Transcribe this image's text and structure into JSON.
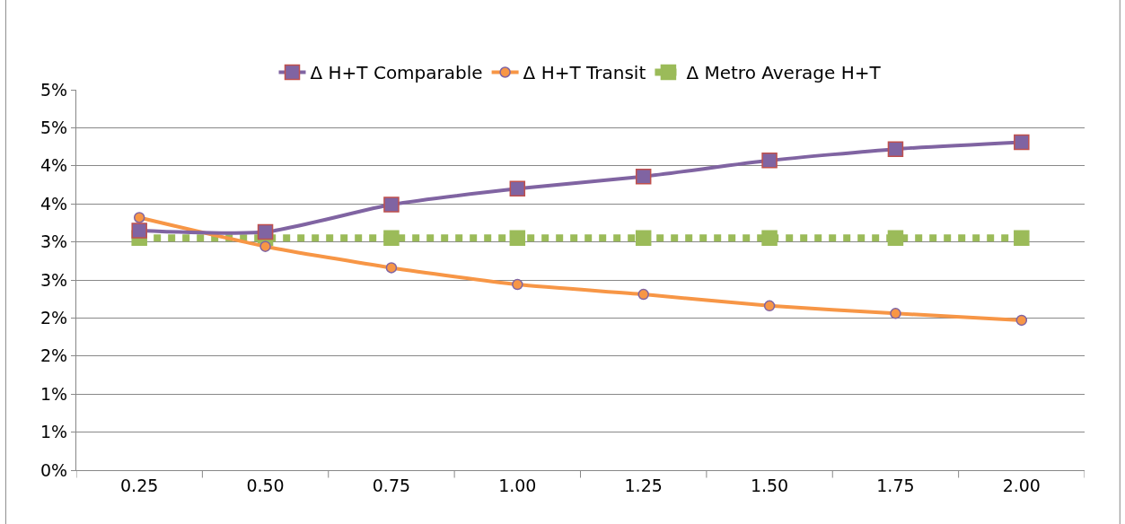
{
  "chart_data": {
    "type": "line",
    "categories": [
      "0.25",
      "0.50",
      "0.75",
      "1.00",
      "1.25",
      "1.50",
      "1.75",
      "2.00"
    ],
    "series": [
      {
        "name": "Δ H+T Comparable",
        "color": "#8064a2",
        "marker": "square",
        "line_style": "solid",
        "values": [
          3.15,
          3.13,
          3.49,
          3.7,
          3.86,
          4.07,
          4.22,
          4.31
        ]
      },
      {
        "name": "Δ H+T Transit",
        "color": "#f79646",
        "marker": "circle",
        "line_style": "solid",
        "values": [
          3.32,
          2.94,
          2.66,
          2.44,
          2.31,
          2.16,
          2.06,
          1.97
        ]
      },
      {
        "name": "Δ Metro Average H+T",
        "color": "#9bbb59",
        "marker": "square",
        "line_style": "dotted",
        "values": [
          3.05,
          3.05,
          3.05,
          3.05,
          3.05,
          3.05,
          3.05,
          3.05
        ]
      }
    ],
    "ylim": [
      0,
      5
    ],
    "yticks": [
      {
        "value": 0,
        "label": "0%"
      },
      {
        "value": 0.5,
        "label": "1%"
      },
      {
        "value": 1,
        "label": "1%"
      },
      {
        "value": 1.5,
        "label": "2%"
      },
      {
        "value": 2,
        "label": "2%"
      },
      {
        "value": 2.5,
        "label": "3%"
      },
      {
        "value": 3,
        "label": "3%"
      },
      {
        "value": 3.5,
        "label": "4%"
      },
      {
        "value": 4,
        "label": "4%"
      },
      {
        "value": 4.5,
        "label": "5%"
      },
      {
        "value": 5,
        "label": "5%"
      }
    ],
    "grid": "y",
    "legend": "top"
  }
}
